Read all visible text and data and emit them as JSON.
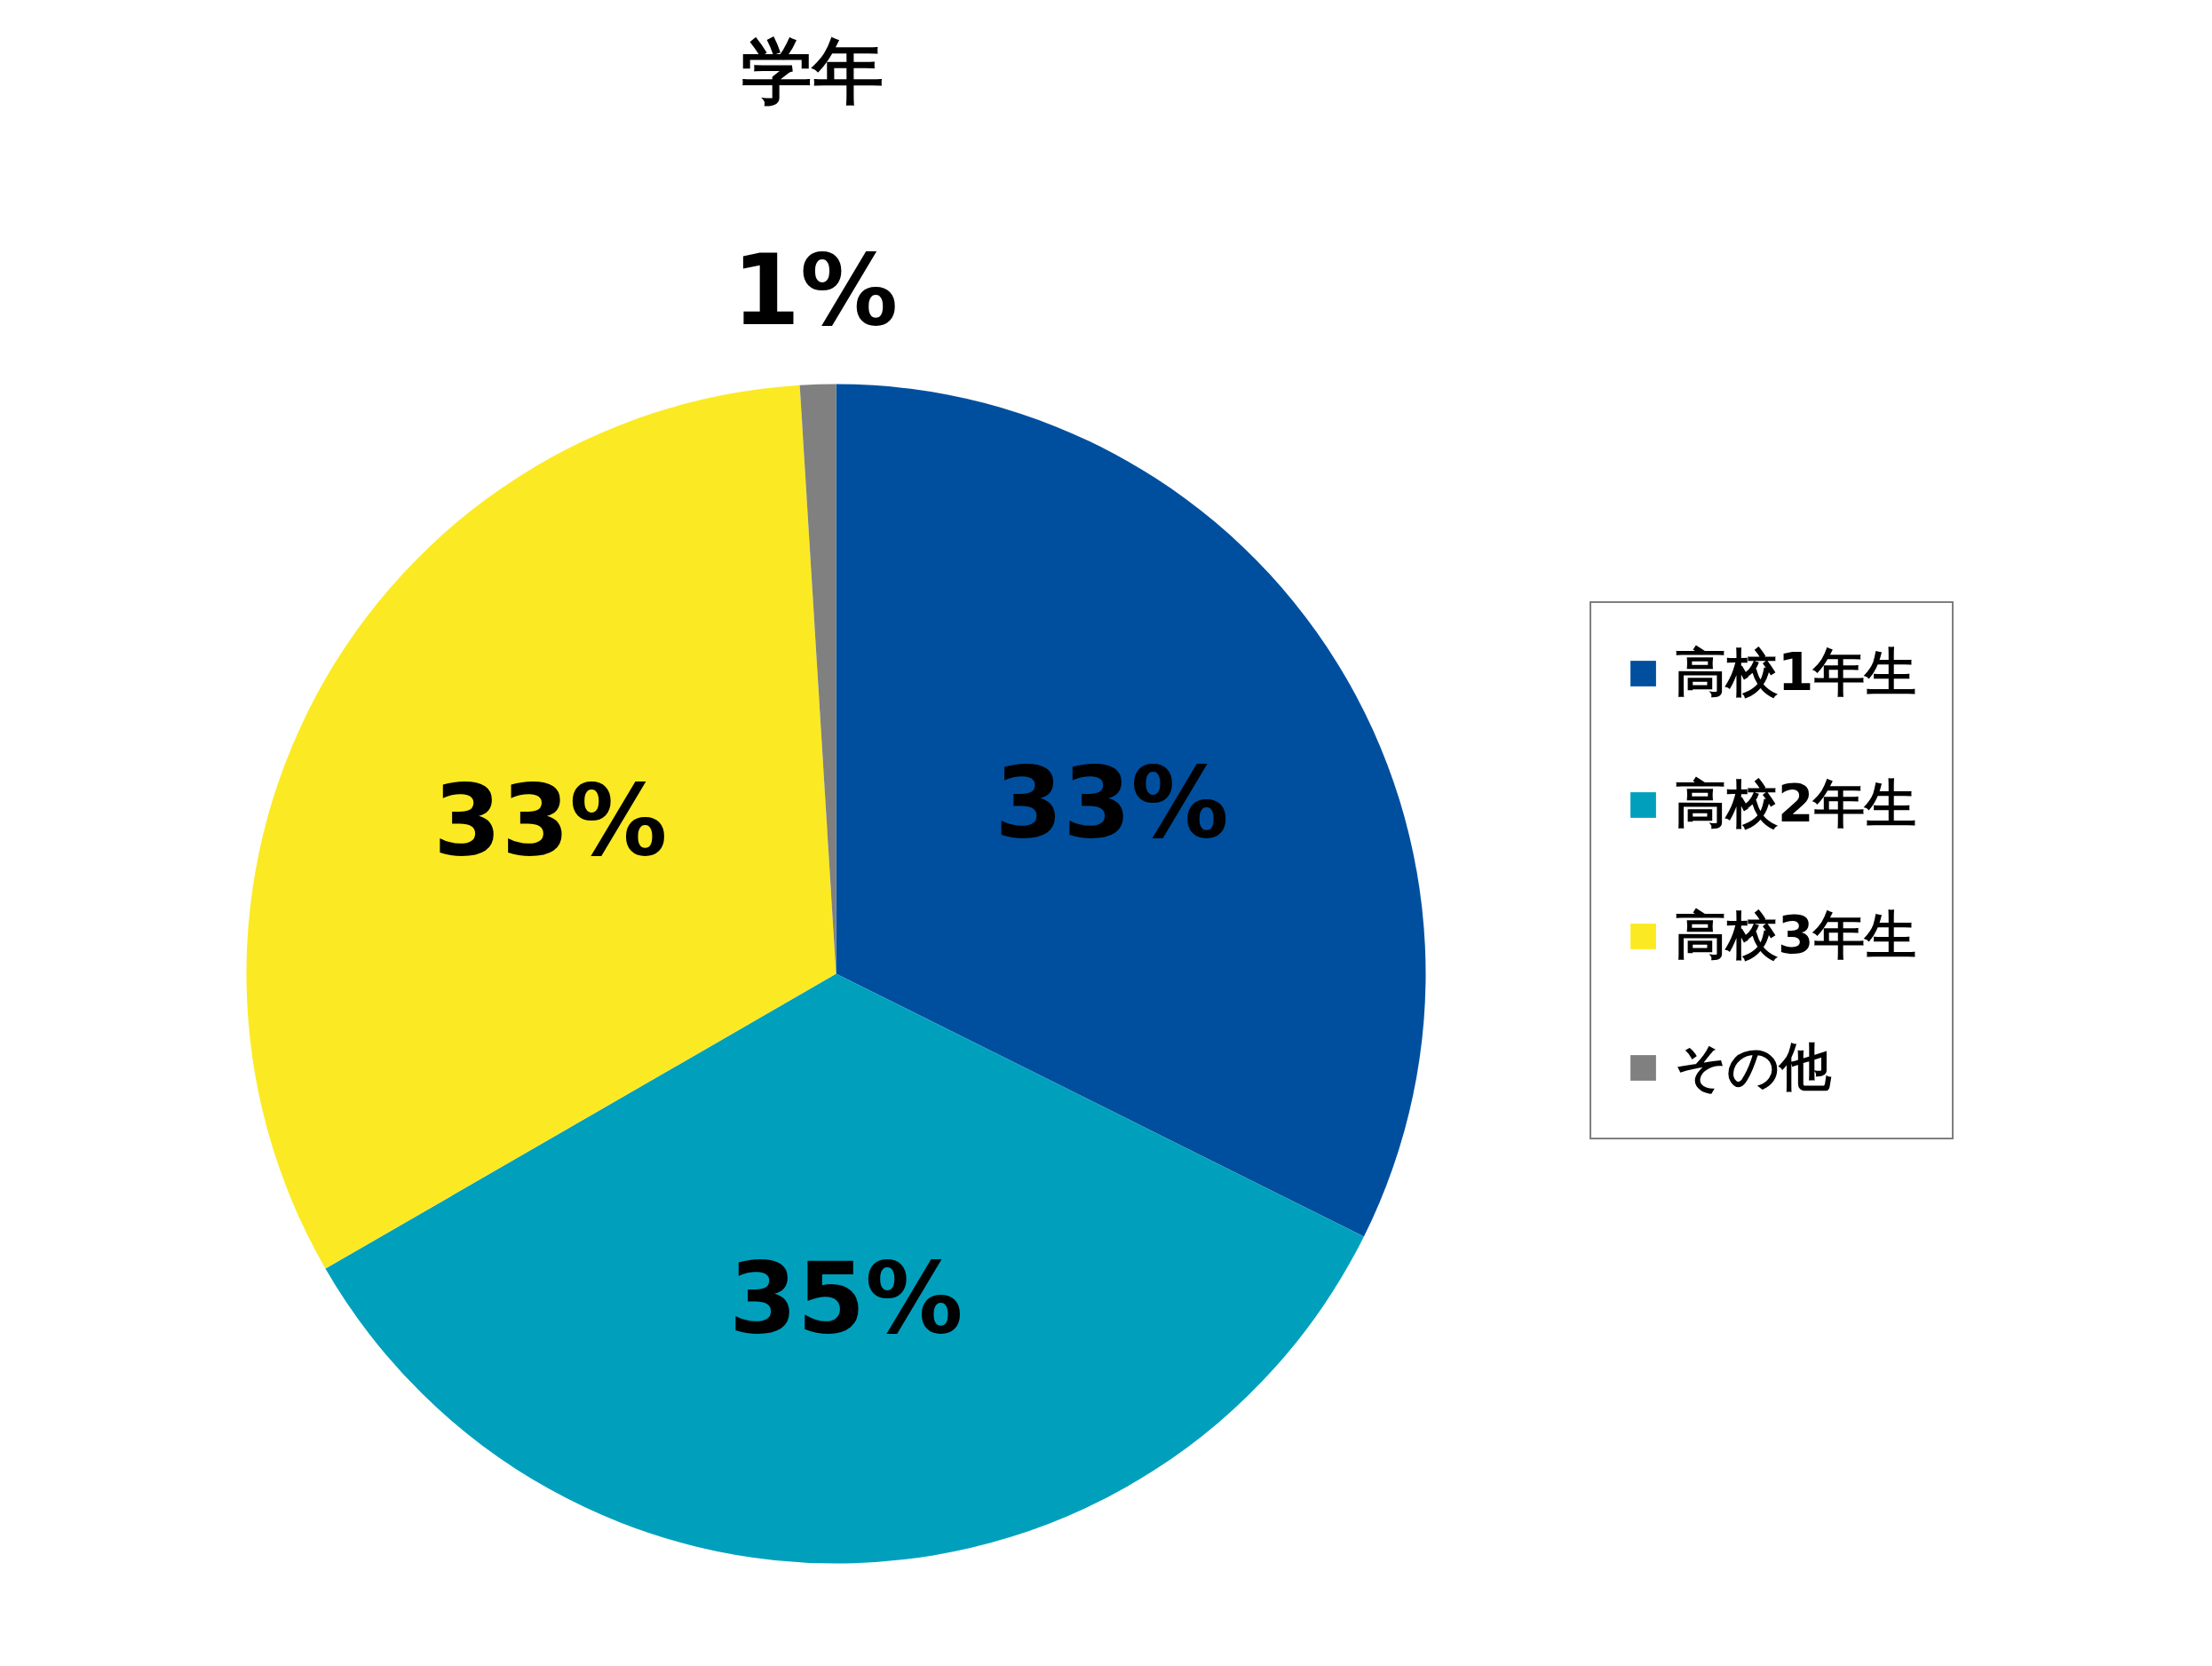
{
  "chart_data": {
    "type": "pie",
    "title": "学年",
    "categories": [
      "高校1年生",
      "高校2年生",
      "高校3年生",
      "その他"
    ],
    "values": [
      33,
      35,
      33,
      1
    ],
    "value_labels": [
      "33%",
      "35%",
      "33%",
      "1%"
    ],
    "colors": [
      "#004f9f",
      "#00a0bd",
      "#fbea23",
      "#808080"
    ],
    "legend": "right"
  }
}
